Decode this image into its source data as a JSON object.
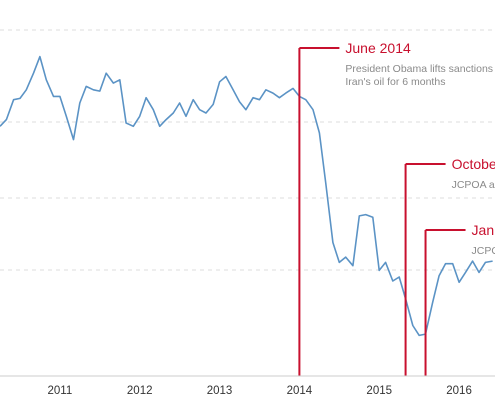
{
  "chart_data": {
    "type": "line",
    "x_tick_labels": [
      "2011",
      "2012",
      "2013",
      "2014",
      "2015",
      "2016"
    ],
    "x_range": [
      2010.25,
      2016.45
    ],
    "y_range": [
      0,
      5
    ],
    "grid": true,
    "series": [
      {
        "color": "#5b93c5",
        "x": [
          2010.25,
          2010.33,
          2010.42,
          2010.5,
          2010.58,
          2010.67,
          2010.75,
          2010.83,
          2010.92,
          2011.0,
          2011.08,
          2011.17,
          2011.25,
          2011.33,
          2011.42,
          2011.5,
          2011.58,
          2011.67,
          2011.75,
          2011.83,
          2011.92,
          2012.0,
          2012.08,
          2012.17,
          2012.25,
          2012.33,
          2012.42,
          2012.5,
          2012.58,
          2012.67,
          2012.75,
          2012.83,
          2012.92,
          2013.0,
          2013.08,
          2013.17,
          2013.25,
          2013.33,
          2013.42,
          2013.5,
          2013.58,
          2013.67,
          2013.75,
          2013.83,
          2013.92,
          2014.0,
          2014.08,
          2014.17,
          2014.25,
          2014.33,
          2014.42,
          2014.5,
          2014.58,
          2014.67,
          2014.75,
          2014.83,
          2014.92,
          2015.0,
          2015.08,
          2015.17,
          2015.25,
          2015.33,
          2015.42,
          2015.5,
          2015.58,
          2015.67,
          2015.75,
          2015.83,
          2015.92,
          2016.0,
          2016.08,
          2016.17,
          2016.25,
          2016.33,
          2016.42
        ],
        "values": [
          3.55,
          3.65,
          3.95,
          3.97,
          4.1,
          4.35,
          4.6,
          4.25,
          4.0,
          4.0,
          3.7,
          3.35,
          3.9,
          4.15,
          4.1,
          4.08,
          4.35,
          4.2,
          4.25,
          3.6,
          3.55,
          3.7,
          3.98,
          3.8,
          3.55,
          3.65,
          3.75,
          3.9,
          3.7,
          3.95,
          3.8,
          3.75,
          3.88,
          4.22,
          4.3,
          4.1,
          3.92,
          3.8,
          3.98,
          3.95,
          4.1,
          4.05,
          3.98,
          4.05,
          4.12,
          4.0,
          3.95,
          3.8,
          3.45,
          2.7,
          1.8,
          1.5,
          1.58,
          1.45,
          2.2,
          2.22,
          2.18,
          1.38,
          1.5,
          1.22,
          1.28,
          0.95,
          0.55,
          0.4,
          0.42,
          0.9,
          1.3,
          1.48,
          1.48,
          1.2,
          1.35,
          1.52,
          1.35,
          1.5,
          1.52
        ]
      }
    ],
    "annotations": [
      {
        "x": 2014.0,
        "title": "June 2014",
        "line1": "President Obama lifts sanctions",
        "line2": "Iran's oil for 6 months"
      },
      {
        "x": 2015.33,
        "title": "October",
        "line1": "JCPOA a",
        "line2": ""
      },
      {
        "x": 2015.58,
        "title": "January",
        "line1": "JCPOA",
        "line2": ""
      }
    ],
    "line_color": "#5b93c5",
    "annotation_color": "#c8102e",
    "grid_color": "#dddddd"
  }
}
